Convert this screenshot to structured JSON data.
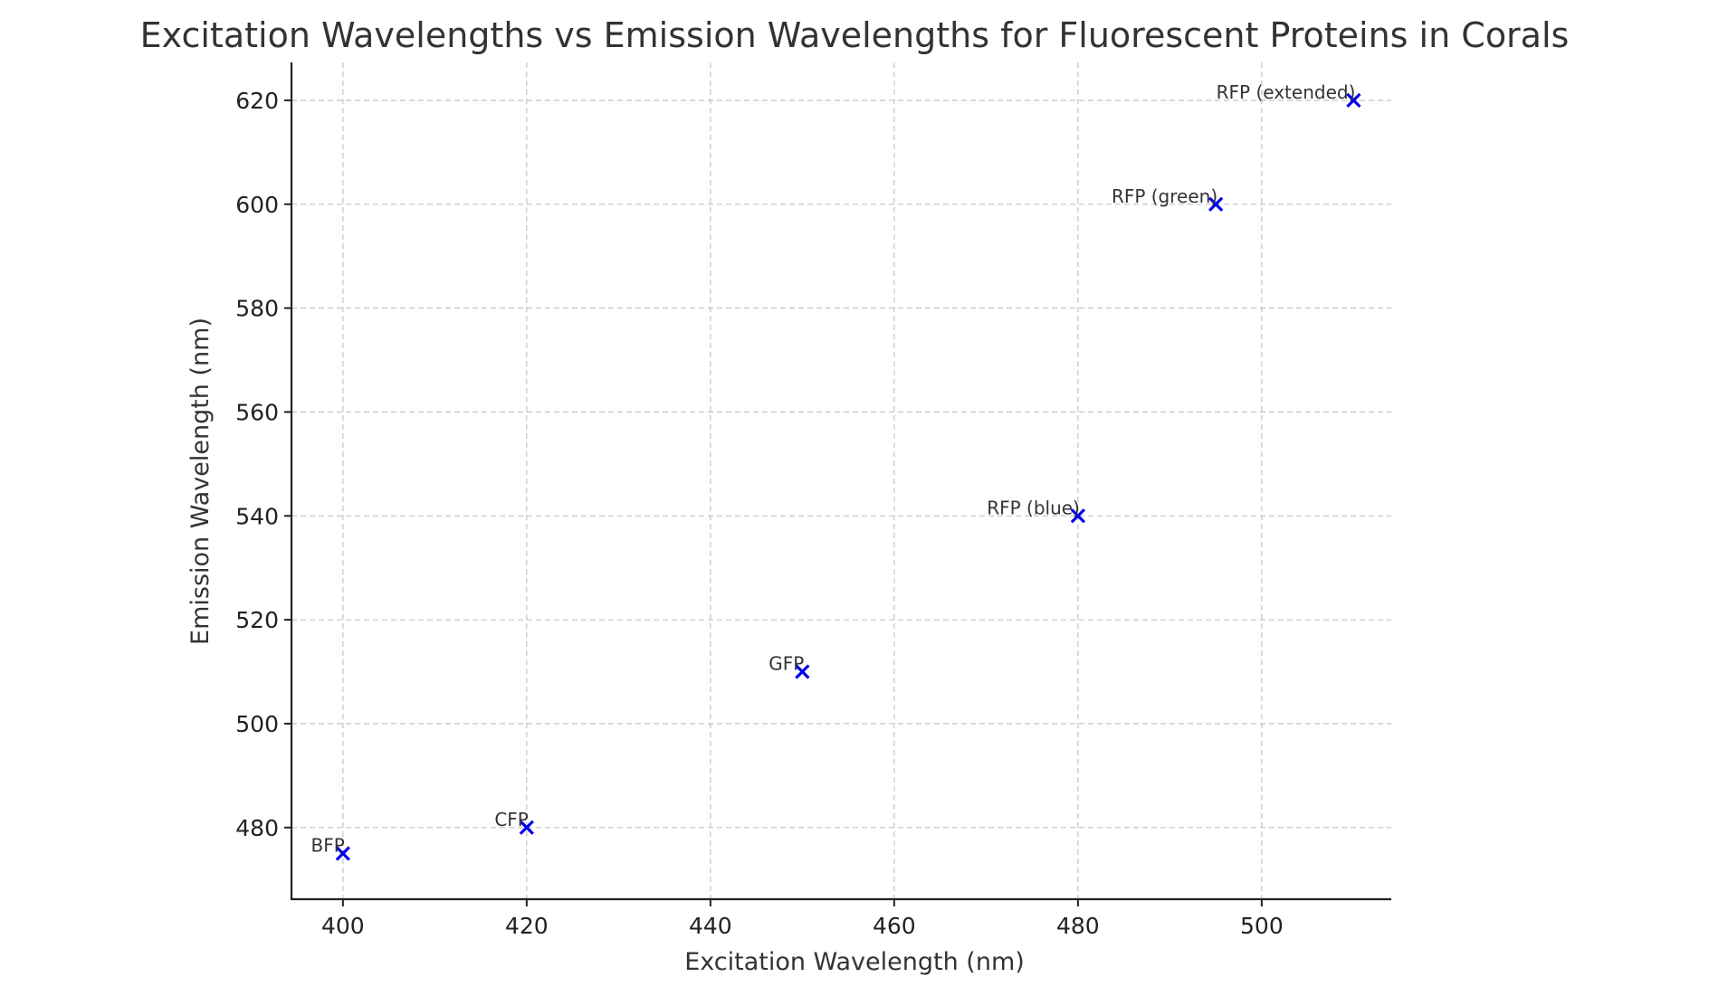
{
  "chart_data": {
    "type": "scatter",
    "title": "Excitation Wavelengths vs Emission Wavelengths for Fluorescent Proteins in Corals",
    "xlabel": "Excitation Wavelength (nm)",
    "ylabel": "Emission Wavelength (nm)",
    "xlim": [
      394.4,
      514.1
    ],
    "ylim": [
      466.2,
      627.3
    ],
    "xticks": [
      400,
      420,
      440,
      460,
      480,
      500
    ],
    "yticks": [
      480,
      500,
      520,
      540,
      560,
      580,
      600,
      620
    ],
    "grid": true,
    "marker": "x",
    "color": "#0000ee",
    "points": [
      {
        "label": "BFP",
        "x": 400,
        "y": 475
      },
      {
        "label": "CFP",
        "x": 420,
        "y": 480
      },
      {
        "label": "GFP",
        "x": 450,
        "y": 510
      },
      {
        "label": "RFP (blue)",
        "x": 480,
        "y": 540
      },
      {
        "label": "RFP (green)",
        "x": 495,
        "y": 600
      },
      {
        "label": "RFP (extended)",
        "x": 510,
        "y": 620
      }
    ]
  }
}
